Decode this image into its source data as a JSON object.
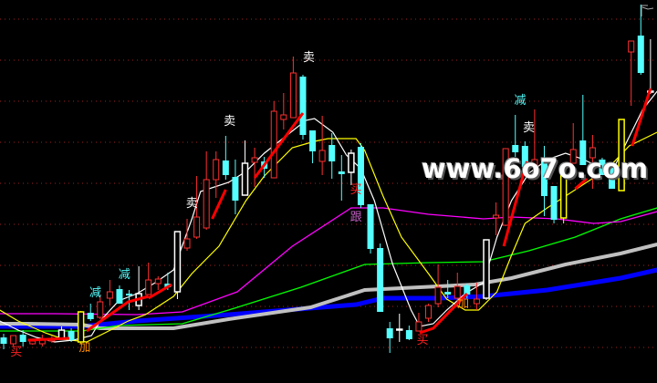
{
  "chart_data": {
    "type": "candlestick",
    "title": "",
    "xlabel": "",
    "ylabel": "",
    "ylim": [
      0,
      42
    ],
    "grid": true,
    "gridline_prices": [
      39.9,
      35.4,
      30.9,
      26.4,
      21.9,
      17.4,
      12.9,
      8.4,
      3.9
    ],
    "colors": {
      "background": "#000000",
      "up": "#ff3030",
      "down": "#55ffff",
      "white": "#ffffff",
      "yellow": "#ffff00",
      "grid": "#a02020"
    },
    "candles": [
      {
        "o": 5.0,
        "h": 5.4,
        "l": 3.7,
        "c": 4.3,
        "k": "down"
      },
      {
        "o": 4.3,
        "h": 5.2,
        "l": 4.0,
        "c": 5.2,
        "k": "up"
      },
      {
        "o": 5.3,
        "h": 5.8,
        "l": 4.0,
        "c": 4.5,
        "k": "down"
      },
      {
        "o": 4.3,
        "h": 4.8,
        "l": 4.2,
        "c": 4.6,
        "k": "up"
      },
      {
        "o": 4.3,
        "h": 5.3,
        "l": 4.0,
        "c": 4.7,
        "k": "up"
      },
      {
        "o": 4.6,
        "h": 5.2,
        "l": 4.4,
        "c": 4.9,
        "k": "up"
      },
      {
        "o": 4.8,
        "h": 6.2,
        "l": 4.8,
        "c": 5.8,
        "k": "white"
      },
      {
        "o": 5.7,
        "h": 6.0,
        "l": 4.5,
        "c": 4.7,
        "k": "down"
      },
      {
        "o": 4.5,
        "h": 7.9,
        "l": 4.3,
        "c": 7.8,
        "k": "yellow"
      },
      {
        "o": 7.7,
        "h": 8.7,
        "l": 6.8,
        "c": 7.0,
        "k": "down"
      },
      {
        "o": 7.2,
        "h": 9.7,
        "l": 7.0,
        "c": 8.9,
        "k": "up"
      },
      {
        "o": 9.3,
        "h": 11.3,
        "l": 8.5,
        "c": 10.0,
        "k": "up"
      },
      {
        "o": 10.3,
        "h": 10.7,
        "l": 8.7,
        "c": 8.7,
        "k": "down"
      },
      {
        "o": 9.8,
        "h": 10.2,
        "l": 8.0,
        "c": 9.6,
        "k": "down"
      },
      {
        "o": 8.5,
        "h": 12.8,
        "l": 8.0,
        "c": 9.8,
        "k": "white"
      },
      {
        "o": 9.7,
        "h": 13.2,
        "l": 9.7,
        "c": 11.3,
        "k": "up"
      },
      {
        "o": 10.9,
        "h": 11.7,
        "l": 10.2,
        "c": 11.4,
        "k": "up"
      },
      {
        "o": 10.9,
        "h": 12.1,
        "l": 10.2,
        "c": 10.5,
        "k": "down"
      },
      {
        "o": 10.0,
        "h": 16.6,
        "l": 9.2,
        "c": 16.6,
        "k": "white"
      },
      {
        "o": 14.8,
        "h": 18.0,
        "l": 14.5,
        "c": 15.8,
        "k": "up"
      },
      {
        "o": 16.0,
        "h": 22.7,
        "l": 15.8,
        "c": 18.2,
        "k": "up"
      },
      {
        "o": 17.0,
        "h": 25.4,
        "l": 16.8,
        "c": 22.3,
        "k": "up"
      },
      {
        "o": 22.3,
        "h": 25.4,
        "l": 20.3,
        "c": 24.5,
        "k": "up"
      },
      {
        "o": 24.4,
        "h": 27.1,
        "l": 22.3,
        "c": 22.8,
        "k": "down"
      },
      {
        "o": 22.6,
        "h": 24.5,
        "l": 18.5,
        "c": 20.0,
        "k": "down"
      },
      {
        "o": 20.6,
        "h": 26.6,
        "l": 20.6,
        "c": 24.1,
        "k": "white"
      },
      {
        "o": 24.2,
        "h": 25.8,
        "l": 21.5,
        "c": 24.7,
        "k": "up"
      },
      {
        "o": 24.3,
        "h": 24.8,
        "l": 22.5,
        "c": 23.5,
        "k": "down"
      },
      {
        "o": 22.5,
        "h": 30.9,
        "l": 22.5,
        "c": 29.8,
        "k": "up"
      },
      {
        "o": 28.9,
        "h": 31.8,
        "l": 27.8,
        "c": 29.4,
        "k": "up"
      },
      {
        "o": 29.1,
        "h": 35.8,
        "l": 29.1,
        "c": 34.0,
        "k": "up"
      },
      {
        "o": 33.6,
        "h": 33.8,
        "l": 26.7,
        "c": 27.2,
        "k": "down"
      },
      {
        "o": 27.7,
        "h": 27.7,
        "l": 24.1,
        "c": 25.4,
        "k": "down"
      },
      {
        "o": 24.3,
        "h": 29.3,
        "l": 22.8,
        "c": 25.5,
        "k": "up"
      },
      {
        "o": 26.1,
        "h": 27.4,
        "l": 22.4,
        "c": 24.3,
        "k": "down"
      },
      {
        "o": 23.2,
        "h": 25.0,
        "l": 20.0,
        "c": 22.9,
        "k": "down"
      },
      {
        "o": 23.1,
        "h": 25.6,
        "l": 21.7,
        "c": 25.2,
        "k": "white"
      },
      {
        "o": 25.9,
        "h": 26.3,
        "l": 19.2,
        "c": 19.5,
        "k": "down"
      },
      {
        "o": 19.6,
        "h": 19.6,
        "l": 14.2,
        "c": 14.7,
        "k": "down"
      },
      {
        "o": 14.8,
        "h": 15.3,
        "l": 7.8,
        "c": 7.8,
        "k": "down"
      },
      {
        "o": 6.0,
        "h": 6.7,
        "l": 3.3,
        "c": 4.9,
        "k": "down"
      },
      {
        "o": 5.9,
        "h": 7.6,
        "l": 4.5,
        "c": 5.9,
        "k": "white"
      },
      {
        "o": 5.8,
        "h": 6.3,
        "l": 4.7,
        "c": 4.8,
        "k": "down"
      },
      {
        "o": 5.7,
        "h": 7.7,
        "l": 5.7,
        "c": 6.7,
        "k": "up"
      },
      {
        "o": 7.1,
        "h": 8.7,
        "l": 6.7,
        "c": 8.5,
        "k": "up"
      },
      {
        "o": 8.7,
        "h": 13.0,
        "l": 8.3,
        "c": 10.5,
        "k": "up"
      },
      {
        "o": 10.0,
        "h": 11.3,
        "l": 9.3,
        "c": 9.7,
        "k": "down"
      },
      {
        "o": 9.3,
        "h": 12.1,
        "l": 8.3,
        "c": 10.6,
        "k": "up"
      },
      {
        "o": 10.7,
        "h": 10.9,
        "l": 9.3,
        "c": 9.7,
        "k": "down"
      },
      {
        "o": 8.7,
        "h": 11.0,
        "l": 8.0,
        "c": 9.2,
        "k": "up"
      },
      {
        "o": 9.3,
        "h": 15.7,
        "l": 9.1,
        "c": 15.7,
        "k": "white"
      },
      {
        "o": 18.1,
        "h": 19.8,
        "l": 16.2,
        "c": 18.4,
        "k": "up"
      },
      {
        "o": 17.3,
        "h": 25.7,
        "l": 17.2,
        "c": 25.7,
        "k": "up"
      },
      {
        "o": 26.1,
        "h": 29.4,
        "l": 24.8,
        "c": 25.3,
        "k": "down"
      },
      {
        "o": 26.0,
        "h": 26.5,
        "l": 23.7,
        "c": 23.7,
        "k": "down"
      },
      {
        "o": 23.7,
        "h": 30.0,
        "l": 23.7,
        "c": 24.5,
        "k": "up"
      },
      {
        "o": 24.7,
        "h": 26.0,
        "l": 18.3,
        "c": 20.5,
        "k": "down"
      },
      {
        "o": 21.6,
        "h": 21.6,
        "l": 17.5,
        "c": 17.9,
        "k": "down"
      },
      {
        "o": 18.1,
        "h": 24.2,
        "l": 17.5,
        "c": 22.8,
        "k": "yellow"
      },
      {
        "o": 24.1,
        "h": 28.5,
        "l": 24.1,
        "c": 25.6,
        "k": "up"
      },
      {
        "o": 26.6,
        "h": 31.6,
        "l": 23.9,
        "c": 23.9,
        "k": "down"
      },
      {
        "o": 24.7,
        "h": 27.2,
        "l": 21.3,
        "c": 25.8,
        "k": "up"
      },
      {
        "o": 24.5,
        "h": 24.7,
        "l": 22.8,
        "c": 22.8,
        "k": "down"
      },
      {
        "o": 23.8,
        "h": 23.8,
        "l": 21.3,
        "c": 21.3,
        "k": "down"
      },
      {
        "o": 21.1,
        "h": 28.9,
        "l": 21.1,
        "c": 28.9,
        "k": "yellow"
      },
      {
        "o": 36.3,
        "h": 37.5,
        "l": 30.4,
        "c": 37.5,
        "k": "up"
      },
      {
        "o": 38.1,
        "h": 41.5,
        "l": 33.8,
        "c": 34.0,
        "k": "down"
      },
      {
        "o": 32.0,
        "h": 37.7,
        "l": 31.7,
        "c": 32.0,
        "k": "white"
      }
    ],
    "lines": [
      {
        "color": "#0000ff",
        "width": 5,
        "points": [
          [
            -0.4,
            6.2
          ],
          [
            8.1,
            6.2
          ],
          [
            13.8,
            6.8
          ],
          [
            23.3,
            7.5
          ],
          [
            36.5,
            8.6
          ],
          [
            39.3,
            9.3
          ],
          [
            45,
            9.3
          ],
          [
            49.7,
            9.5
          ],
          [
            56.3,
            10.2
          ],
          [
            63.9,
            11.5
          ],
          [
            67.7,
            12.4
          ]
        ]
      },
      {
        "color": "#c0c0c0",
        "width": 4,
        "points": [
          [
            -0.4,
            6.5
          ],
          [
            2.5,
            6.5
          ],
          [
            8.1,
            6.4
          ],
          [
            10,
            6.0
          ],
          [
            17.6,
            6.0
          ],
          [
            23.3,
            7.0
          ],
          [
            31.8,
            8.3
          ],
          [
            37.4,
            10.2
          ],
          [
            43.1,
            10.5
          ],
          [
            48.8,
            10.8
          ],
          [
            52.6,
            11.5
          ],
          [
            58.2,
            13.0
          ],
          [
            63.9,
            14.2
          ],
          [
            67.7,
            15.2
          ]
        ]
      },
      {
        "color": "#00ff00",
        "width": 1.3,
        "points": [
          [
            -0.4,
            5.7
          ],
          [
            8.1,
            5.7
          ],
          [
            11.9,
            6.3
          ],
          [
            18.5,
            6.5
          ],
          [
            23.3,
            8.0
          ],
          [
            30.8,
            10.5
          ],
          [
            37.4,
            13.0
          ],
          [
            44,
            13.2
          ],
          [
            49.7,
            13.3
          ],
          [
            54.4,
            14.5
          ],
          [
            59.2,
            16.0
          ],
          [
            63.9,
            18.0
          ],
          [
            67.7,
            19.2
          ]
        ]
      },
      {
        "color": "#ff00ff",
        "width": 1.3,
        "points": [
          [
            -0.4,
            7.6
          ],
          [
            5.3,
            7.6
          ],
          [
            13.8,
            7.5
          ],
          [
            18.5,
            7.8
          ],
          [
            24.2,
            10.0
          ],
          [
            29.9,
            15.0
          ],
          [
            36,
            19.2
          ],
          [
            39.3,
            19.2
          ],
          [
            44,
            18.5
          ],
          [
            49.7,
            18.0
          ],
          [
            52.6,
            18.2
          ],
          [
            57.3,
            18.0
          ],
          [
            61.1,
            17.5
          ],
          [
            63.9,
            17.7
          ],
          [
            67.7,
            18.8
          ]
        ]
      },
      {
        "color": "#ffff00",
        "width": 1.2,
        "points": [
          [
            -0.4,
            8.0
          ],
          [
            1.5,
            6.8
          ],
          [
            4.3,
            5.5
          ],
          [
            6.2,
            4.8
          ],
          [
            8.6,
            4.5
          ],
          [
            10.5,
            5.5
          ],
          [
            12.9,
            6.8
          ],
          [
            14.7,
            7.5
          ],
          [
            17.6,
            9.5
          ],
          [
            19.5,
            12.0
          ],
          [
            22.3,
            15.0
          ],
          [
            25.1,
            20.0
          ],
          [
            27,
            22.7
          ],
          [
            29.9,
            25.8
          ],
          [
            32.2,
            26.5
          ],
          [
            33.6,
            26.8
          ],
          [
            36.5,
            26.8
          ],
          [
            37.4,
            25.5
          ],
          [
            39.3,
            20.5
          ],
          [
            41.2,
            16.0
          ],
          [
            44,
            12.0
          ],
          [
            45.9,
            9.2
          ],
          [
            47.8,
            8.0
          ],
          [
            49.2,
            8.0
          ],
          [
            51.1,
            10.0
          ],
          [
            52.6,
            14.0
          ],
          [
            54,
            17.5
          ],
          [
            56.3,
            19.2
          ],
          [
            58.2,
            20.5
          ],
          [
            61.1,
            22.5
          ],
          [
            63,
            24.0
          ],
          [
            64.8,
            26.0
          ],
          [
            67.7,
            27.5
          ]
        ]
      },
      {
        "color": "#ffffff",
        "width": 1.2,
        "points": [
          [
            -0.4,
            6.8
          ],
          [
            1.5,
            5.8
          ],
          [
            3.4,
            5.0
          ],
          [
            5.3,
            4.5
          ],
          [
            7.2,
            4.7
          ],
          [
            9.1,
            5.2
          ],
          [
            10,
            6.8
          ],
          [
            11.9,
            9.0
          ],
          [
            13.8,
            9.8
          ],
          [
            15.7,
            11.0
          ],
          [
            17.6,
            12.4
          ],
          [
            19.5,
            18.0
          ],
          [
            20.4,
            21.0
          ],
          [
            23.3,
            22.0
          ],
          [
            25.1,
            23.2
          ],
          [
            27,
            25.2
          ],
          [
            28.9,
            26.8
          ],
          [
            31.3,
            28.8
          ],
          [
            32.2,
            29.0
          ],
          [
            34.1,
            27.5
          ],
          [
            35.5,
            25.0
          ],
          [
            37,
            23.5
          ],
          [
            38.4,
            20.0
          ],
          [
            40.3,
            13.0
          ],
          [
            42.2,
            8.0
          ],
          [
            43.1,
            6.2
          ],
          [
            44.5,
            6.5
          ],
          [
            45.9,
            8.0
          ],
          [
            47.8,
            9.8
          ],
          [
            49.7,
            11.0
          ],
          [
            51.1,
            16.0
          ],
          [
            52.6,
            20.0
          ],
          [
            54.4,
            23.0
          ],
          [
            56.3,
            24.5
          ],
          [
            58.2,
            25.2
          ],
          [
            60.1,
            24.5
          ],
          [
            62,
            23.5
          ],
          [
            63.4,
            24.0
          ],
          [
            64.8,
            27.0
          ],
          [
            66.2,
            30.0
          ],
          [
            67.7,
            32.0
          ]
        ]
      }
    ],
    "trend_segments": {
      "color": "#ff0000",
      "segments": [
        [
          [
            2.5,
            4.7
          ],
          [
            6.8,
            4.9
          ]
        ],
        [
          [
            8.6,
            5.7
          ],
          [
            12.9,
            8.9
          ],
          [
            15,
            9.5
          ]
        ],
        [
          [
            15,
            9.3
          ],
          [
            17.4,
            10.8
          ]
        ],
        [
          [
            21.6,
            18.0
          ],
          [
            23,
            21.2
          ]
        ],
        [
          [
            26,
            22.5
          ],
          [
            31,
            29.6
          ]
        ],
        [
          [
            43.1,
            5.5
          ],
          [
            44.5,
            6.0
          ],
          [
            48,
            9.8
          ]
        ],
        [
          [
            51.8,
            15.0
          ],
          [
            54.2,
            24.3
          ]
        ],
        [
          [
            59.2,
            21.3
          ],
          [
            60.4,
            22.4
          ]
        ],
        [
          [
            65.1,
            26.0
          ],
          [
            67,
            32.3
          ]
        ]
      ]
    },
    "signals": [
      {
        "text": "买",
        "index": 1.3,
        "price": 3.5,
        "color": "#ff2020"
      },
      {
        "text": "加",
        "index": 8.4,
        "price": 4.0,
        "color": "#ff8c00"
      },
      {
        "text": "减",
        "index": 9.5,
        "price": 10.0,
        "color": "#55ffff"
      },
      {
        "text": "减",
        "index": 12.5,
        "price": 12.0,
        "color": "#55ffff"
      },
      {
        "text": "卖",
        "index": 19.5,
        "price": 19.8,
        "color": "#ffffff"
      },
      {
        "text": "卖",
        "index": 23.4,
        "price": 28.8,
        "color": "#ffffff"
      },
      {
        "text": "卖",
        "index": 31.6,
        "price": 35.8,
        "color": "#ffffff"
      },
      {
        "text": "买",
        "index": 36.5,
        "price": 21.3,
        "color": "#ff2020"
      },
      {
        "text": "跟",
        "index": 36.5,
        "price": 18.3,
        "color": "#c060c0"
      },
      {
        "text": "买",
        "index": 43.4,
        "price": 4.8,
        "color": "#ff2020"
      },
      {
        "text": "加",
        "index": 47.6,
        "price": 8.8,
        "color": "#ff8c00"
      },
      {
        "text": "减",
        "index": 53.5,
        "price": 31.1,
        "color": "#55ffff"
      },
      {
        "text": "卖",
        "index": 54.4,
        "price": 28.1,
        "color": "#ffffff"
      }
    ]
  },
  "watermark": "www.6o7o.com"
}
